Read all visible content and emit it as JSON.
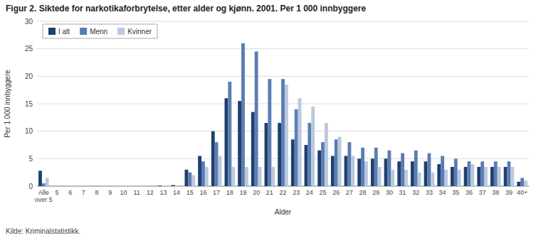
{
  "chart_data": {
    "type": "bar",
    "title": "Figur 2. Siktede for narkotikaforbrytelse, etter alder og kjønn. 2001. Per 1 000 innbyggere",
    "source": "Kilde: Kriminalstatistikk.",
    "x_label": "Alder",
    "y_label": "Per 1 000 innbyggere",
    "categories": [
      "Alle\nover 5",
      "5",
      "6",
      "7",
      "8",
      "9",
      "10",
      "11",
      "12",
      "13",
      "14",
      "15",
      "16",
      "17",
      "18",
      "19",
      "20",
      "21",
      "22",
      "23",
      "24",
      "25",
      "26",
      "27",
      "28",
      "29",
      "30",
      "31",
      "32",
      "33",
      "34",
      "35",
      "36",
      "37",
      "38",
      "39",
      "40+"
    ],
    "series": [
      {
        "name": "I alt",
        "color": "#1f3f6e",
        "values": [
          2.8,
          0.0,
          0.0,
          0.0,
          0.0,
          0.0,
          0.0,
          0.0,
          0.0,
          0.1,
          0.2,
          3.0,
          5.5,
          10.0,
          16.0,
          15.5,
          13.5,
          11.5,
          11.5,
          8.5,
          7.5,
          6.5,
          5.5,
          5.5,
          5.0,
          5.0,
          5.0,
          4.5,
          4.5,
          4.5,
          4.0,
          3.5,
          3.5,
          3.5,
          3.5,
          3.5,
          0.8
        ]
      },
      {
        "name": "Menn",
        "color": "#5b7db1",
        "values": [
          0.5,
          0.0,
          0.0,
          0.0,
          0.0,
          0.0,
          0.0,
          0.0,
          0.0,
          0.0,
          0.0,
          2.5,
          4.5,
          8.0,
          19.0,
          26.0,
          24.5,
          19.5,
          19.5,
          14.0,
          11.5,
          8.0,
          8.5,
          8.0,
          7.0,
          7.0,
          6.5,
          6.0,
          6.5,
          6.0,
          5.5,
          5.0,
          4.5,
          4.5,
          4.5,
          4.5,
          1.5
        ]
      },
      {
        "name": "Kvinner",
        "color": "#b8c9e0",
        "values": [
          1.5,
          0.0,
          0.0,
          0.0,
          0.0,
          0.0,
          0.0,
          0.0,
          0.0,
          0.0,
          0.0,
          2.0,
          3.5,
          5.5,
          3.5,
          3.5,
          3.5,
          3.5,
          18.5,
          16.0,
          14.5,
          11.5,
          9.0,
          5.5,
          4.5,
          3.5,
          3.0,
          3.0,
          2.5,
          2.5,
          3.0,
          3.0,
          4.0,
          3.5,
          3.5,
          3.5,
          1.0
        ]
      }
    ],
    "ylim": [
      0,
      30
    ],
    "yticks": [
      0,
      5,
      10,
      15,
      20,
      25,
      30
    ],
    "grid": true,
    "legend": "top-left"
  }
}
